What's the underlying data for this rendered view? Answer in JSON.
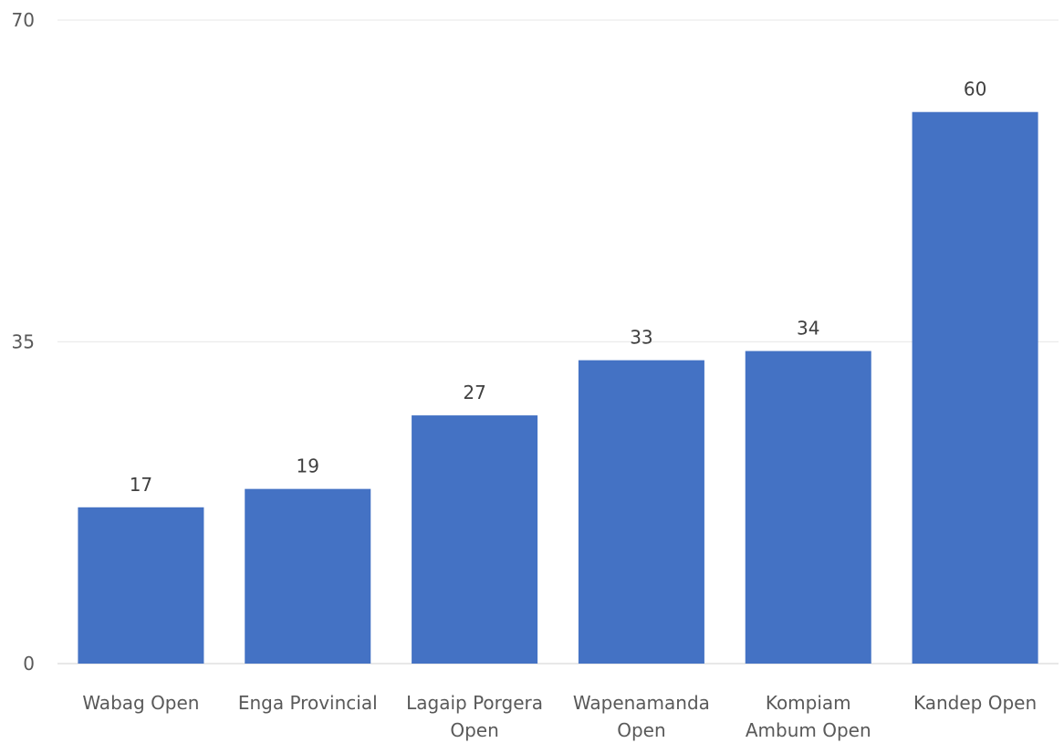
{
  "chart_data": {
    "type": "bar",
    "title": "",
    "xlabel": "",
    "ylabel": "",
    "ylim": [
      0,
      70
    ],
    "yticks": [
      0,
      35,
      70
    ],
    "grid": true,
    "legend": "none",
    "bar_color": "#4472C4",
    "grid_color": "#ececec",
    "categories": [
      [
        "Wabag Open"
      ],
      [
        "Enga Provincial"
      ],
      [
        "Lagaip Porgera",
        "Open"
      ],
      [
        "Wapenamanda",
        "Open"
      ],
      [
        "Kompiam",
        "Ambum Open"
      ],
      [
        "Kandep Open"
      ]
    ],
    "values": [
      17,
      19,
      27,
      33,
      34,
      60
    ]
  }
}
